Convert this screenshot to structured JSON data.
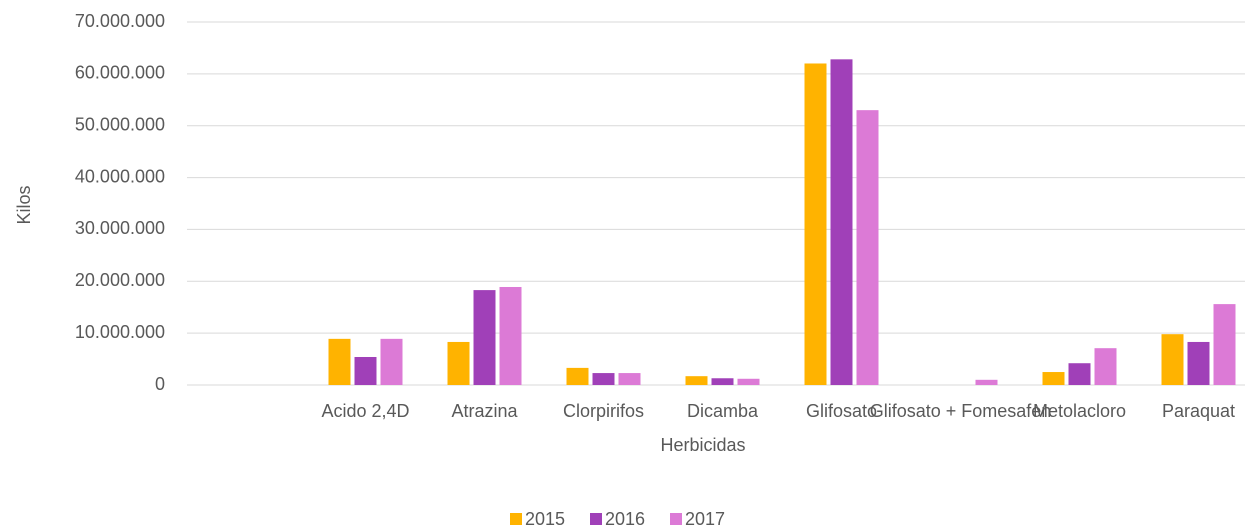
{
  "chart_data": {
    "type": "bar",
    "x_label": "Herbicidas",
    "y_label": "Kilos",
    "categories": [
      null,
      "Acido 2,4D",
      "Atrazina",
      "Clorpirifos",
      "Dicamba",
      "Glifosato",
      "Glifosato + Fomesafen",
      "Metolacloro",
      "Paraquat"
    ],
    "series": [
      {
        "name": "2015",
        "color": "#ffb300",
        "values": [
          null,
          8900000,
          8300000,
          3300000,
          1700000,
          62000000,
          0,
          2500000,
          9800000
        ]
      },
      {
        "name": "2016",
        "color": "#a040b8",
        "values": [
          null,
          5400000,
          18300000,
          2300000,
          1300000,
          62800000,
          0,
          4200000,
          8300000
        ]
      },
      {
        "name": "2017",
        "color": "#dc7ad6",
        "values": [
          null,
          8900000,
          18900000,
          2300000,
          1200000,
          53000000,
          1000000,
          7100000,
          15600000
        ]
      }
    ],
    "ylim": [
      0,
      70000000
    ],
    "yticks": [
      0,
      {
        "value": 10000000,
        "label": "10.000.000"
      },
      {
        "value": 20000000,
        "label": "20.000.000"
      },
      {
        "value": 30000000,
        "label": "30.000.000"
      },
      {
        "value": 40000000,
        "label": "40.000.000"
      },
      {
        "value": 50000000,
        "label": "50.000.000"
      },
      {
        "value": 60000000,
        "label": "60.000.000"
      },
      {
        "value": 70000000,
        "label": "70.000.000"
      }
    ],
    "grid": true,
    "legend": "bottom"
  }
}
